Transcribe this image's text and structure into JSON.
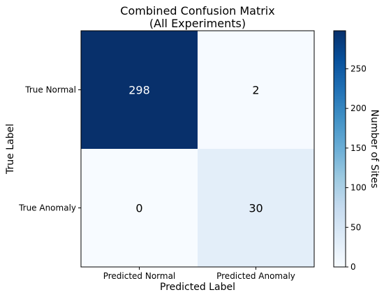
{
  "chart_data": {
    "type": "heatmap",
    "title": "Combined Confusion Matrix",
    "subtitle": "(All Experiments)",
    "xlabel": "Predicted Label",
    "ylabel": "True Label",
    "x_categories": [
      "Predicted Normal",
      "Predicted Anomaly"
    ],
    "y_categories": [
      "True Normal",
      "True Anomaly"
    ],
    "values": [
      [
        298,
        2
      ],
      [
        0,
        30
      ]
    ],
    "colorbar": {
      "label": "Number of Sites",
      "range": [
        0,
        298
      ],
      "ticks": [
        0,
        50,
        100,
        150,
        200,
        250
      ]
    },
    "colormap": "Blues",
    "grid": false,
    "legend": "colorbar-right"
  }
}
